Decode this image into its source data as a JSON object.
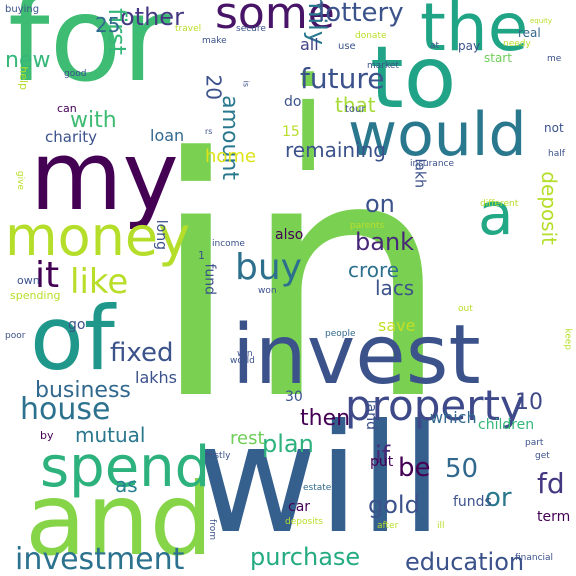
{
  "title": "",
  "words": [
    {
      "id": "in",
      "text": "in",
      "color": "#7ad151"
    },
    {
      "id": "for",
      "text": "for",
      "color": "#3fbc73"
    },
    {
      "id": "will",
      "text": "will",
      "color": "#355f8d"
    },
    {
      "id": "invest",
      "text": "invest",
      "color": "#3b528b"
    },
    {
      "id": "and",
      "text": "and",
      "color": "#86d549"
    },
    {
      "id": "my",
      "text": "my",
      "color": "#440154"
    },
    {
      "id": "i",
      "text": "i",
      "color": "#7ad151"
    },
    {
      "id": "to",
      "text": "to",
      "color": "#20a386"
    },
    {
      "id": "of",
      "text": "of",
      "color": "#1f988b"
    },
    {
      "id": "would",
      "text": "would",
      "color": "#2a788e"
    },
    {
      "id": "the",
      "text": "the",
      "color": "#20a486"
    },
    {
      "id": "money",
      "text": "money",
      "color": "#b5de2b"
    },
    {
      "id": "spend",
      "text": "spend",
      "color": "#2db27d"
    },
    {
      "id": "a",
      "text": "a",
      "color": "#22a884"
    },
    {
      "id": "property",
      "text": "property",
      "color": "#3e4989"
    },
    {
      "id": "some",
      "text": "some",
      "color": "#481467"
    },
    {
      "id": "investment",
      "text": "investment",
      "color": "#2c728e"
    },
    {
      "id": "buy",
      "text": "buy",
      "color": "#2d708e"
    },
    {
      "id": "future",
      "text": "future",
      "color": "#3b528b"
    },
    {
      "id": "family",
      "text": "family",
      "color": "#2a788e"
    },
    {
      "id": "like",
      "text": "like",
      "color": "#b8de29"
    },
    {
      "id": "it",
      "text": "it",
      "color": "#440154"
    },
    {
      "id": "house",
      "text": "house",
      "color": "#2c728e"
    },
    {
      "id": "business",
      "text": "business",
      "color": "#31688e"
    },
    {
      "id": "lottery",
      "text": "lottery",
      "color": "#3b528b"
    },
    {
      "id": "other",
      "text": "other",
      "color": "#453781"
    },
    {
      "id": "amount",
      "text": "amount",
      "color": "#2a788e"
    },
    {
      "id": "bank",
      "text": "bank",
      "color": "#482878"
    },
    {
      "id": "fixed",
      "text": "fixed",
      "color": "#3b528b"
    },
    {
      "id": "plan",
      "text": "plan",
      "color": "#2db27d"
    },
    {
      "id": "purchase",
      "text": "purchase",
      "color": "#25ab82"
    },
    {
      "id": "education",
      "text": "education",
      "color": "#3b528b"
    },
    {
      "id": "gold",
      "text": "gold",
      "color": "#3b528b"
    },
    {
      "id": "then",
      "text": "then",
      "color": "#440154"
    },
    {
      "id": "that",
      "text": "that",
      "color": "#a5db36"
    },
    {
      "id": "with",
      "text": "with",
      "color": "#3fbc73"
    },
    {
      "id": "first",
      "text": "first",
      "color": "#35b779"
    },
    {
      "id": "on",
      "text": "on",
      "color": "#3b528b"
    },
    {
      "id": "crore",
      "text": "crore",
      "color": "#2d708e"
    },
    {
      "id": "lacs",
      "text": "lacs",
      "color": "#3b528b"
    },
    {
      "id": "deposit",
      "text": "deposit",
      "color": "#b5de2b"
    },
    {
      "id": "remaining",
      "text": "remaining",
      "color": "#3b528b"
    },
    {
      "id": "mutual",
      "text": "mutual",
      "color": "#2a788e"
    },
    {
      "id": "lakhs",
      "text": "lakhs",
      "color": "#3b528b"
    },
    {
      "id": "rest",
      "text": "rest",
      "color": "#6ece58"
    },
    {
      "id": "be",
      "text": "be",
      "color": "#440154"
    },
    {
      "id": "if",
      "text": "if",
      "color": "#482878"
    },
    {
      "id": "or",
      "text": "or",
      "color": "#2a788e"
    },
    {
      "id": "fd",
      "text": "fd",
      "color": "#453781"
    },
    {
      "id": "fifty",
      "text": "50",
      "color": "#31688e"
    },
    {
      "id": "ten",
      "text": "10",
      "color": "#3e4989"
    },
    {
      "id": "as",
      "text": "as",
      "color": "#26828e"
    },
    {
      "id": "new",
      "text": "new",
      "color": "#35b779"
    },
    {
      "id": "twentyfive",
      "text": "25",
      "color": "#31688e"
    },
    {
      "id": "all",
      "text": "all",
      "color": "#414487"
    },
    {
      "id": "twenty",
      "text": "20",
      "color": "#3b528b"
    },
    {
      "id": "home",
      "text": "home",
      "color": "#dde318"
    },
    {
      "id": "loan",
      "text": "loan",
      "color": "#31688e"
    },
    {
      "id": "charity",
      "text": "charity",
      "color": "#3b528b"
    },
    {
      "id": "which",
      "text": "which",
      "color": "#31688e"
    },
    {
      "id": "save",
      "text": "save",
      "color": "#c2df23"
    },
    {
      "id": "car",
      "text": "car",
      "color": "#440154"
    },
    {
      "id": "funds",
      "text": "funds",
      "color": "#3b528b"
    },
    {
      "id": "fund",
      "text": "fund",
      "color": "#3b528b"
    },
    {
      "id": "long",
      "text": "long",
      "color": "#3b528b"
    },
    {
      "id": "land",
      "text": "land",
      "color": "#3b528b"
    },
    {
      "id": "put",
      "text": "put",
      "color": "#440154"
    },
    {
      "id": "term",
      "text": "term",
      "color": "#440154"
    },
    {
      "id": "children",
      "text": "children",
      "color": "#35b779"
    },
    {
      "id": "lakh",
      "text": "lakh",
      "color": "#3b528b"
    },
    {
      "id": "also",
      "text": "also",
      "color": "#440154"
    },
    {
      "id": "go",
      "text": "go",
      "color": "#3b528b"
    },
    {
      "id": "thirty",
      "text": "30",
      "color": "#3b528b"
    },
    {
      "id": "do",
      "text": "do",
      "color": "#3b528b"
    },
    {
      "id": "fifteen",
      "text": "15",
      "color": "#b8de29"
    },
    {
      "id": "pay",
      "text": "pay",
      "color": "#3b528b"
    },
    {
      "id": "start",
      "text": "start",
      "color": "#6ece58"
    },
    {
      "id": "real",
      "text": "real",
      "color": "#31688e"
    },
    {
      "id": "not",
      "text": "not",
      "color": "#3b528b"
    },
    {
      "id": "can",
      "text": "can",
      "color": "#440154"
    },
    {
      "id": "help",
      "text": "help",
      "color": "#b5de2b"
    },
    {
      "id": "own",
      "text": "own",
      "color": "#3b528b"
    },
    {
      "id": "spending",
      "text": "spending",
      "color": "#b8de29"
    },
    {
      "id": "poor",
      "text": "poor",
      "color": "#3b528b"
    },
    {
      "id": "by",
      "text": "by",
      "color": "#440154"
    },
    {
      "id": "firstly",
      "text": "firstly",
      "color": "#3b528b"
    },
    {
      "id": "from",
      "text": "from",
      "color": "#3b528b"
    },
    {
      "id": "deposits",
      "text": "deposits",
      "color": "#b8de29"
    },
    {
      "id": "after",
      "text": "after",
      "color": "#b8de29"
    },
    {
      "id": "ill",
      "text": "ill",
      "color": "#b8de29"
    },
    {
      "id": "estate",
      "text": "estate",
      "color": "#31688e"
    },
    {
      "id": "financial",
      "text": "financial",
      "color": "#3b528b"
    },
    {
      "id": "get",
      "text": "get",
      "color": "#3b528b"
    },
    {
      "id": "part",
      "text": "part",
      "color": "#3b528b"
    },
    {
      "id": "keep",
      "text": "keep",
      "color": "#b8de29"
    },
    {
      "id": "out",
      "text": "out",
      "color": "#b8de29"
    },
    {
      "id": "people",
      "text": "people",
      "color": "#31688e"
    },
    {
      "id": "world",
      "text": "world",
      "color": "#3b528b"
    },
    {
      "id": "win",
      "text": "win",
      "color": "#3b528b"
    },
    {
      "id": "won",
      "text": "won",
      "color": "#3b528b"
    },
    {
      "id": "income",
      "text": "income",
      "color": "#3b528b"
    },
    {
      "id": "parents",
      "text": "parents",
      "color": "#b8de29"
    },
    {
      "id": "different",
      "text": "different",
      "color": "#b8de29"
    },
    {
      "id": "insurance",
      "text": "insurance",
      "color": "#3b528b"
    },
    {
      "id": "half",
      "text": "half",
      "color": "#3b528b"
    },
    {
      "id": "tour",
      "text": "tour",
      "color": "#3b528b"
    },
    {
      "id": "market",
      "text": "market",
      "color": "#3b528b"
    },
    {
      "id": "use",
      "text": "use",
      "color": "#3b528b"
    },
    {
      "id": "donate",
      "text": "donate",
      "color": "#b8de29"
    },
    {
      "id": "at",
      "text": "at",
      "color": "#3b528b"
    },
    {
      "id": "needy",
      "text": "needy",
      "color": "#b8de29"
    },
    {
      "id": "me",
      "text": "me",
      "color": "#3b528b"
    },
    {
      "id": "equity",
      "text": "equity",
      "color": "#b8de29"
    },
    {
      "id": "buying",
      "text": "buying",
      "color": "#3b528b"
    },
    {
      "id": "travel",
      "text": "travel",
      "color": "#b8de29"
    },
    {
      "id": "make",
      "text": "make",
      "color": "#3b528b"
    },
    {
      "id": "secure",
      "text": "secure",
      "color": "#3b528b"
    },
    {
      "id": "good",
      "text": "good",
      "color": "#3b528b"
    },
    {
      "id": "is",
      "text": "is",
      "color": "#3b528b"
    },
    {
      "id": "rs",
      "text": "rs",
      "color": "#3b528b"
    },
    {
      "id": "give",
      "text": "give",
      "color": "#b8de29"
    },
    {
      "id": "one",
      "text": "1",
      "color": "#3b528b"
    }
  ]
}
